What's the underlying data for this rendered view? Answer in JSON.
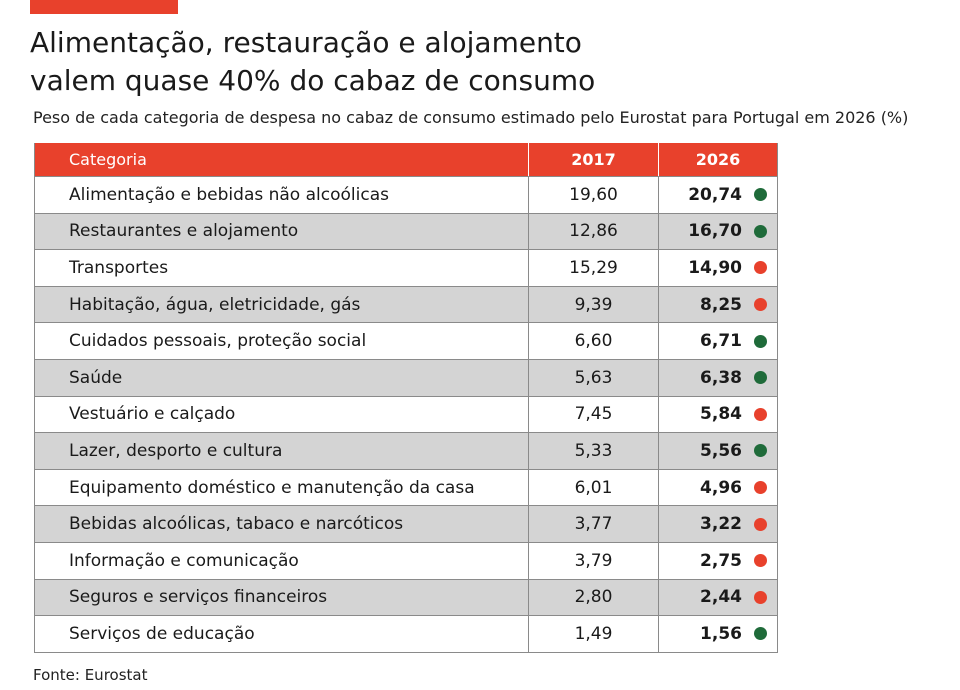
{
  "title_lines": [
    "Alimentação, restauração e alojamento",
    "valem quase 40% do cabaz de consumo"
  ],
  "subtitle": "Peso de cada categoria de despesa no cabaz de consumo estimado pelo Eurostat para Portugal em 2026 (%)",
  "source": "Fonte: Eurostat",
  "colors": {
    "accent": "#e8412c",
    "up": "#1f6b3a",
    "down": "#e8412c",
    "stripe": "#d4d4d4"
  },
  "chart_data": {
    "type": "table",
    "columns": [
      "Categoria",
      "2017",
      "2026"
    ],
    "rows": [
      {
        "category": "Alimentação e bebidas não alcoólicas",
        "v2017": "19,60",
        "v2026": "20,74",
        "trend": "up"
      },
      {
        "category": "Restaurantes e alojamento",
        "v2017": "12,86",
        "v2026": "16,70",
        "trend": "up"
      },
      {
        "category": "Transportes",
        "v2017": "15,29",
        "v2026": "14,90",
        "trend": "down"
      },
      {
        "category": "Habitação, água, eletricidade, gás",
        "v2017": "9,39",
        "v2026": "8,25",
        "trend": "down"
      },
      {
        "category": "Cuidados pessoais, proteção social",
        "v2017": "6,60",
        "v2026": "6,71",
        "trend": "up"
      },
      {
        "category": "Saúde",
        "v2017": "5,63",
        "v2026": "6,38",
        "trend": "up"
      },
      {
        "category": "Vestuário e calçado",
        "v2017": "7,45",
        "v2026": "5,84",
        "trend": "down"
      },
      {
        "category": "Lazer, desporto e cultura",
        "v2017": "5,33",
        "v2026": "5,56",
        "trend": "up"
      },
      {
        "category": "Equipamento doméstico e manutenção da casa",
        "v2017": "6,01",
        "v2026": "4,96",
        "trend": "down"
      },
      {
        "category": "Bebidas alcoólicas, tabaco e narcóticos",
        "v2017": "3,77",
        "v2026": "3,22",
        "trend": "down"
      },
      {
        "category": "Informação e comunicação",
        "v2017": "3,79",
        "v2026": "2,75",
        "trend": "down"
      },
      {
        "category": "Seguros e serviços financeiros",
        "v2017": "2,80",
        "v2026": "2,44",
        "trend": "down"
      },
      {
        "category": "Serviços de educação",
        "v2017": "1,49",
        "v2026": "1,56",
        "trend": "up"
      }
    ]
  }
}
